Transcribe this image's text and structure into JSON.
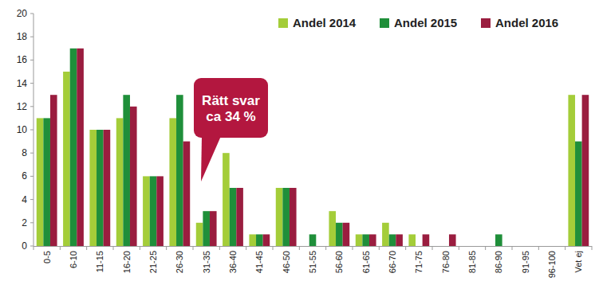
{
  "chart_data": {
    "type": "bar",
    "categories": [
      "0-5",
      "6-10",
      "11-15",
      "16-20",
      "21-25",
      "26-30",
      "31-35",
      "36-40",
      "41-45",
      "46-50",
      "51-55",
      "56-60",
      "61-65",
      "66-70",
      "71-75",
      "76-80",
      "81-85",
      "86-90",
      "91-95",
      "96-100",
      "Vet ej"
    ],
    "series": [
      {
        "name": "Andel 2014",
        "color": "#a4cd39",
        "values": [
          11,
          15,
          10,
          11,
          6,
          11,
          2,
          8,
          1,
          5,
          0,
          3,
          1,
          2,
          1,
          0,
          0,
          0,
          0,
          0,
          13
        ]
      },
      {
        "name": "Andel 2015",
        "color": "#1f8f3a",
        "values": [
          11,
          17,
          10,
          13,
          6,
          13,
          3,
          5,
          1,
          5,
          1,
          2,
          1,
          1,
          0,
          0,
          0,
          1,
          0,
          0,
          9
        ]
      },
      {
        "name": "Andel 2016",
        "color": "#9a1d3f",
        "values": [
          13,
          17,
          10,
          12,
          6,
          9,
          3,
          5,
          1,
          5,
          0,
          2,
          1,
          1,
          1,
          1,
          0,
          0,
          0,
          0,
          13
        ]
      }
    ],
    "ylim": [
      0,
      20
    ],
    "yticks": [
      0,
      2,
      4,
      6,
      8,
      10,
      12,
      14,
      16,
      18,
      20
    ],
    "grid": false,
    "legend": "top-right",
    "annotations": [
      "Rätt svar",
      "ca 34 %"
    ]
  }
}
